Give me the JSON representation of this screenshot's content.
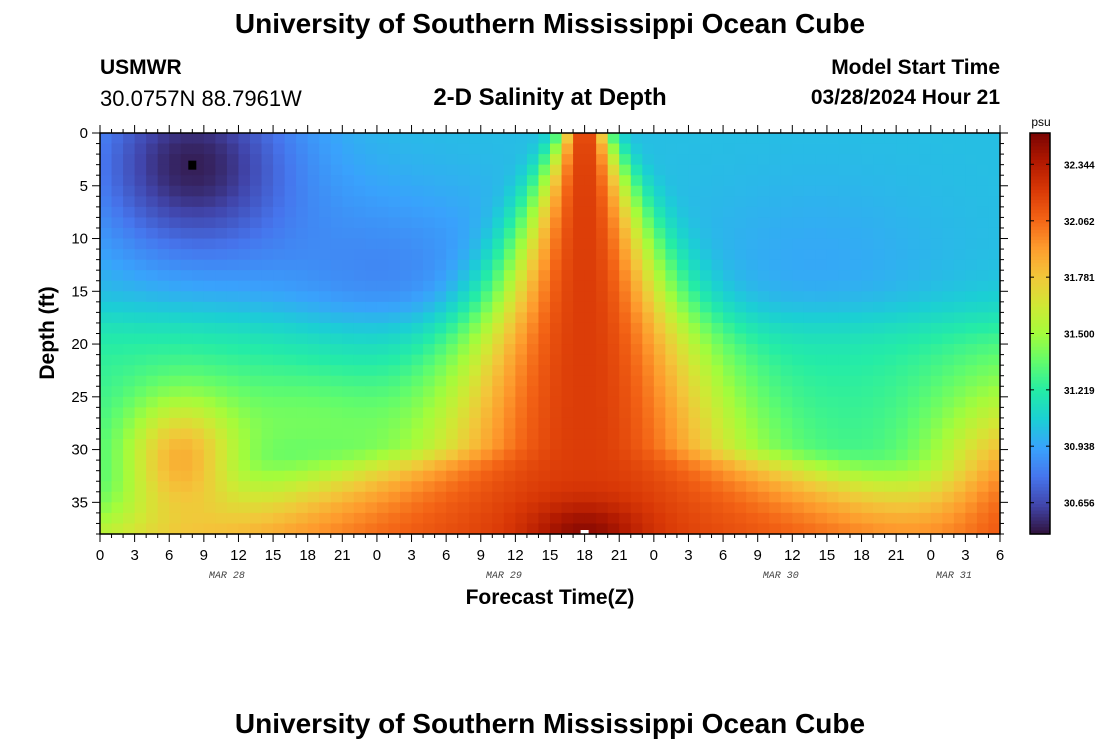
{
  "header": {
    "title": "University of Southern Mississippi Ocean Cube",
    "station": "USMWR",
    "coords": "30.0757N  88.7961W",
    "subtitle": "2-D Salinity at Depth",
    "model_label": "Model Start Time",
    "model_time": "03/28/2024 Hour 21"
  },
  "footer": {
    "title": "University of Southern Mississippi Ocean Cube"
  },
  "chart_data": {
    "type": "heatmap",
    "variable": "salinity",
    "xlabel": "Forecast Time(Z)",
    "ylabel": "Depth (ft)",
    "x_tick_labels": [
      "0",
      "3",
      "6",
      "9",
      "12",
      "15",
      "18",
      "21",
      "0",
      "3",
      "6",
      "9",
      "12",
      "15",
      "18",
      "21",
      "0",
      "3",
      "6",
      "9",
      "12",
      "15",
      "18",
      "21",
      "0",
      "3",
      "6"
    ],
    "date_labels": [
      {
        "text": "MAR 28",
        "hour": 11
      },
      {
        "text": "MAR 29",
        "hour": 35
      },
      {
        "text": "MAR 30",
        "hour": 59
      },
      {
        "text": "MAR 31",
        "hour": 74
      }
    ],
    "x_range_hours": [
      0,
      78
    ],
    "y_ticks": [
      0,
      5,
      10,
      15,
      20,
      25,
      30,
      35
    ],
    "y_range": [
      0,
      38
    ],
    "y_inverted": true,
    "colorbar": {
      "unit": "psu",
      "ticks": [
        32.344,
        32.062,
        31.781,
        31.5,
        31.219,
        30.938,
        30.656
      ],
      "range": [
        30.5,
        32.5
      ],
      "colors": [
        "#30123b",
        "#4145ab",
        "#4675ed",
        "#39a2fc",
        "#1bcfd4",
        "#24eca6",
        "#61fc6c",
        "#a4fc3b",
        "#d1e834",
        "#f3c63a",
        "#fe9b2d",
        "#f36315",
        "#d93806",
        "#b11901",
        "#7a0402"
      ]
    },
    "features": [
      {
        "type": "min",
        "hour": 8,
        "depth": 3,
        "value": 30.5
      },
      {
        "type": "max",
        "hour": 42,
        "depth": 38,
        "value": 32.45
      },
      {
        "type": "max",
        "hour": 7,
        "depth": 31,
        "value": 31.85
      },
      {
        "type": "max",
        "hour": 78,
        "depth": 36,
        "value": 32.2
      }
    ]
  }
}
